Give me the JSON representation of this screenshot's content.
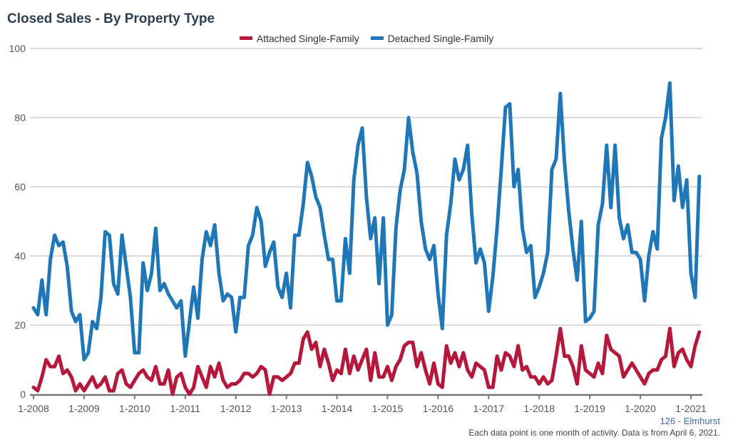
{
  "chart_data": {
    "type": "line",
    "title": "Closed Sales - By Property Type",
    "xlabel": "",
    "ylabel": "",
    "start_month": "1-2008",
    "end_month": "3-2021",
    "x_tick_labels": [
      "1-2008",
      "1-2009",
      "1-2010",
      "1-2011",
      "1-2012",
      "1-2013",
      "1-2014",
      "1-2015",
      "1-2016",
      "1-2017",
      "1-2018",
      "1-2019",
      "1-2020",
      "1-2021"
    ],
    "y_tick_labels": [
      "0",
      "20",
      "40",
      "60",
      "80",
      "100"
    ],
    "ylim": [
      0,
      100
    ],
    "grid": true,
    "legend_position": "top-center",
    "series": [
      {
        "name": "Attached Single-Family",
        "color": "#b5183a",
        "values": [
          2,
          1,
          5,
          10,
          8,
          8,
          11,
          6,
          7,
          5,
          1,
          3,
          1,
          3,
          5,
          2,
          3,
          5,
          1,
          1,
          6,
          7,
          3,
          2,
          4,
          6,
          7,
          5,
          4,
          8,
          3,
          3,
          7,
          0,
          5,
          6,
          2,
          0,
          2,
          8,
          5,
          2,
          8,
          5,
          9,
          4,
          2,
          3,
          3,
          4,
          6,
          6,
          5,
          6,
          8,
          7,
          0,
          5,
          5,
          4,
          5,
          6,
          9,
          9,
          16,
          18,
          13,
          15,
          8,
          13,
          9,
          4,
          7,
          6,
          13,
          6,
          11,
          7,
          10,
          13,
          4,
          12,
          5,
          5,
          8,
          4,
          8,
          10,
          14,
          15,
          15,
          8,
          12,
          7,
          3,
          9,
          3,
          2,
          14,
          9,
          12,
          8,
          12,
          7,
          5,
          9,
          8,
          7,
          2,
          2,
          11,
          7,
          12,
          11,
          8,
          14,
          7,
          8,
          5,
          5,
          3,
          5,
          3,
          4,
          11,
          19,
          11,
          11,
          8,
          3,
          14,
          7,
          6,
          5,
          9,
          6,
          17,
          13,
          12,
          11,
          5,
          7,
          9,
          7,
          5,
          3,
          6,
          7,
          7,
          10,
          11,
          19,
          8,
          12,
          13,
          10,
          8,
          14,
          18
        ]
      },
      {
        "name": "Detached Single-Family",
        "color": "#1f77b8",
        "values": [
          25,
          23,
          33,
          23,
          39,
          46,
          43,
          44,
          37,
          24,
          21,
          23,
          10,
          12,
          21,
          19,
          28,
          47,
          46,
          32,
          29,
          46,
          37,
          28,
          12,
          12,
          38,
          30,
          35,
          48,
          30,
          32,
          29,
          27,
          25,
          27,
          11,
          21,
          31,
          22,
          39,
          47,
          43,
          49,
          35,
          27,
          29,
          28,
          18,
          28,
          28,
          43,
          46,
          54,
          50,
          37,
          41,
          44,
          31,
          28,
          35,
          25,
          46,
          46,
          55,
          67,
          63,
          57,
          54,
          46,
          39,
          39,
          27,
          27,
          45,
          35,
          62,
          72,
          77,
          57,
          45,
          51,
          32,
          51,
          20,
          23,
          48,
          59,
          65,
          80,
          70,
          64,
          50,
          42,
          39,
          43,
          29,
          19,
          46,
          55,
          68,
          62,
          65,
          72,
          52,
          38,
          42,
          38,
          24,
          34,
          48,
          65,
          83,
          84,
          60,
          65,
          48,
          41,
          43,
          28,
          31,
          35,
          41,
          65,
          68,
          87,
          67,
          53,
          42,
          33,
          50,
          21,
          22,
          24,
          49,
          55,
          72,
          54,
          72,
          51,
          45,
          49,
          41,
          41,
          39,
          27,
          40,
          47,
          42,
          74,
          80,
          90,
          56,
          66,
          54,
          62,
          35,
          28,
          63
        ]
      }
    ]
  },
  "footer": {
    "area": "126 - Elmhurst",
    "note": "Each data point is one month of activity. Data is from April 6, 2021."
  }
}
